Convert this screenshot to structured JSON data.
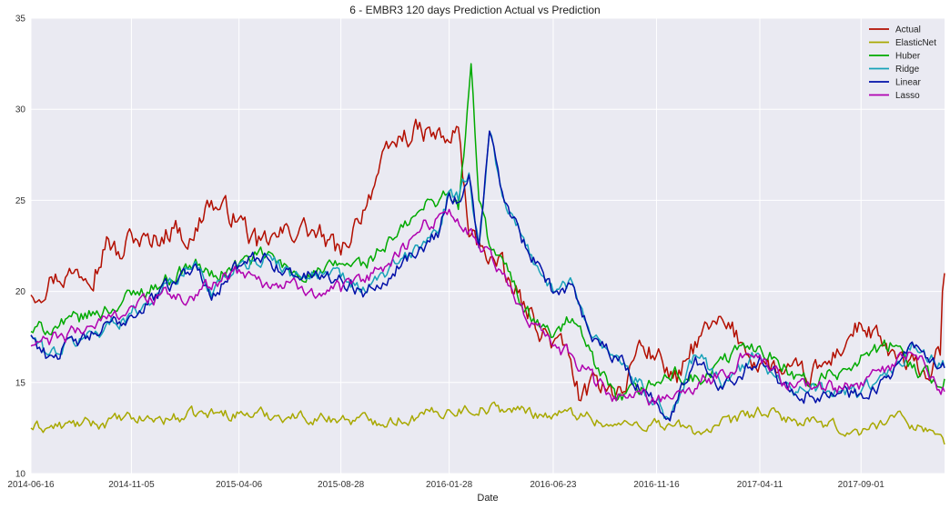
{
  "chart_data": {
    "type": "line",
    "title": "6 - EMBR3 120 days Prediction Actual vs Prediction",
    "xlabel": "Date",
    "ylabel": "",
    "ylim": [
      10,
      35
    ],
    "yticks": [
      "10",
      "15",
      "20",
      "25",
      "30",
      "35"
    ],
    "xlim": [
      "2014-06-16",
      "2017-12-28"
    ],
    "xticks": [
      "2014-06-16",
      "2014-11-05",
      "2015-04-06",
      "2015-08-28",
      "2016-01-28",
      "2016-06-23",
      "2016-11-16",
      "2017-04-11",
      "2017-09-01"
    ],
    "grid": true,
    "legend_position": "top-right",
    "plot_background": "#eaeaf2",
    "series": [
      {
        "name": "Actual",
        "color": "#b30f00",
        "points": [
          [
            "2014-06-16",
            19.8
          ],
          [
            "2014-07-15",
            20.8
          ],
          [
            "2014-08-15",
            21.0
          ],
          [
            "2014-09-15",
            21.2
          ],
          [
            "2014-10-01",
            23.0
          ],
          [
            "2014-10-20",
            21.8
          ],
          [
            "2014-11-05",
            23.2
          ],
          [
            "2014-12-01",
            22.6
          ],
          [
            "2015-01-01",
            23.5
          ],
          [
            "2015-02-01",
            22.8
          ],
          [
            "2015-02-20",
            25.0
          ],
          [
            "2015-03-10",
            24.5
          ],
          [
            "2015-04-06",
            24.0
          ],
          [
            "2015-05-01",
            22.5
          ],
          [
            "2015-06-01",
            23.0
          ],
          [
            "2015-07-01",
            23.5
          ],
          [
            "2015-08-01",
            23.0
          ],
          [
            "2015-08-28",
            22.0
          ],
          [
            "2015-09-20",
            24.0
          ],
          [
            "2015-10-20",
            26.5
          ],
          [
            "2015-11-20",
            28.5
          ],
          [
            "2015-12-20",
            28.8
          ],
          [
            "2016-01-28",
            28.2
          ],
          [
            "2016-02-10",
            29.0
          ],
          [
            "2016-02-25",
            23.0
          ],
          [
            "2016-03-15",
            22.5
          ],
          [
            "2016-04-15",
            21.0
          ],
          [
            "2016-05-15",
            19.0
          ],
          [
            "2016-06-23",
            17.2
          ],
          [
            "2016-07-15",
            16.5
          ],
          [
            "2016-08-01",
            14.0
          ],
          [
            "2016-09-01",
            15.0
          ],
          [
            "2016-10-01",
            14.5
          ],
          [
            "2016-10-20",
            17.0
          ],
          [
            "2016-11-16",
            16.5
          ],
          [
            "2016-12-15",
            15.0
          ],
          [
            "2017-01-15",
            17.5
          ],
          [
            "2017-02-20",
            18.2
          ],
          [
            "2017-03-20",
            17.0
          ],
          [
            "2017-04-11",
            16.0
          ],
          [
            "2017-05-15",
            15.5
          ],
          [
            "2017-06-15",
            15.2
          ],
          [
            "2017-07-15",
            16.0
          ],
          [
            "2017-08-15",
            17.5
          ],
          [
            "2017-09-01",
            18.2
          ],
          [
            "2017-10-01",
            17.0
          ],
          [
            "2017-11-01",
            16.0
          ],
          [
            "2017-12-10",
            15.5
          ],
          [
            "2017-12-22",
            16.5
          ],
          [
            "2017-12-25",
            20.0
          ],
          [
            "2017-12-28",
            21.0
          ]
        ]
      },
      {
        "name": "ElasticNet",
        "color": "#a8a800",
        "points": [
          [
            "2014-06-16",
            12.5
          ],
          [
            "2014-08-01",
            12.6
          ],
          [
            "2014-10-01",
            12.8
          ],
          [
            "2014-11-05",
            13.0
          ],
          [
            "2015-01-01",
            13.0
          ],
          [
            "2015-02-15",
            13.3
          ],
          [
            "2015-04-06",
            13.3
          ],
          [
            "2015-06-01",
            13.2
          ],
          [
            "2015-08-28",
            13.0
          ],
          [
            "2015-10-15",
            12.9
          ],
          [
            "2015-12-15",
            13.1
          ],
          [
            "2016-01-28",
            13.5
          ],
          [
            "2016-03-15",
            13.6
          ],
          [
            "2016-05-01",
            13.5
          ],
          [
            "2016-06-23",
            13.2
          ],
          [
            "2016-08-01",
            13.3
          ],
          [
            "2016-09-15",
            12.6
          ],
          [
            "2016-11-16",
            12.8
          ],
          [
            "2017-01-15",
            12.3
          ],
          [
            "2017-03-01",
            12.8
          ],
          [
            "2017-04-11",
            13.4
          ],
          [
            "2017-06-01",
            12.9
          ],
          [
            "2017-07-15",
            12.6
          ],
          [
            "2017-09-01",
            12.2
          ],
          [
            "2017-10-15",
            13.2
          ],
          [
            "2017-12-01",
            12.5
          ],
          [
            "2017-12-28",
            11.6
          ]
        ]
      },
      {
        "name": "Huber",
        "color": "#00aa00",
        "points": [
          [
            "2014-06-16",
            17.8
          ],
          [
            "2014-08-01",
            18.2
          ],
          [
            "2014-10-01",
            19.0
          ],
          [
            "2014-11-05",
            19.8
          ],
          [
            "2014-12-20",
            20.5
          ],
          [
            "2015-02-01",
            21.5
          ],
          [
            "2015-03-01",
            20.8
          ],
          [
            "2015-04-06",
            21.5
          ],
          [
            "2015-05-15",
            22.0
          ],
          [
            "2015-06-20",
            21.0
          ],
          [
            "2015-08-01",
            21.0
          ],
          [
            "2015-08-28",
            21.5
          ],
          [
            "2015-10-01",
            21.5
          ],
          [
            "2015-11-15",
            23.0
          ],
          [
            "2015-12-20",
            24.5
          ],
          [
            "2016-01-28",
            25.5
          ],
          [
            "2016-02-10",
            24.5
          ],
          [
            "2016-02-20",
            28.5
          ],
          [
            "2016-02-28",
            32.5
          ],
          [
            "2016-03-10",
            25.0
          ],
          [
            "2016-03-25",
            22.5
          ],
          [
            "2016-04-15",
            21.5
          ],
          [
            "2016-05-15",
            19.0
          ],
          [
            "2016-06-23",
            17.5
          ],
          [
            "2016-07-20",
            18.5
          ],
          [
            "2016-08-20",
            16.0
          ],
          [
            "2016-09-20",
            14.0
          ],
          [
            "2016-10-20",
            14.5
          ],
          [
            "2016-11-16",
            15.0
          ],
          [
            "2016-12-15",
            15.5
          ],
          [
            "2017-01-20",
            15.0
          ],
          [
            "2017-03-01",
            16.5
          ],
          [
            "2017-04-11",
            17.0
          ],
          [
            "2017-05-15",
            16.0
          ],
          [
            "2017-06-15",
            15.0
          ],
          [
            "2017-08-01",
            15.5
          ],
          [
            "2017-09-01",
            16.5
          ],
          [
            "2017-10-15",
            17.0
          ],
          [
            "2017-11-15",
            16.0
          ],
          [
            "2017-12-15",
            15.0
          ],
          [
            "2017-12-28",
            15.2
          ]
        ]
      },
      {
        "name": "Ridge",
        "color": "#17a2b8",
        "points": [
          [
            "2014-06-16",
            17.6
          ],
          [
            "2014-07-10",
            16.5
          ],
          [
            "2014-09-01",
            17.5
          ],
          [
            "2014-11-05",
            18.8
          ],
          [
            "2015-01-01",
            20.5
          ],
          [
            "2015-02-01",
            21.5
          ],
          [
            "2015-03-01",
            20.0
          ],
          [
            "2015-04-06",
            21.5
          ],
          [
            "2015-05-15",
            22.0
          ],
          [
            "2015-06-20",
            21.0
          ],
          [
            "2015-08-01",
            21.0
          ],
          [
            "2015-08-28",
            20.8
          ],
          [
            "2015-10-01",
            20.0
          ],
          [
            "2015-11-15",
            21.5
          ],
          [
            "2015-12-20",
            22.5
          ],
          [
            "2016-01-15",
            23.5
          ],
          [
            "2016-01-28",
            25.5
          ],
          [
            "2016-02-10",
            25.0
          ],
          [
            "2016-02-25",
            26.5
          ],
          [
            "2016-03-10",
            22.5
          ],
          [
            "2016-03-25",
            28.8
          ],
          [
            "2016-04-15",
            25.0
          ],
          [
            "2016-05-15",
            22.5
          ],
          [
            "2016-06-23",
            20.0
          ],
          [
            "2016-07-20",
            20.5
          ],
          [
            "2016-08-20",
            17.5
          ],
          [
            "2016-09-20",
            16.5
          ],
          [
            "2016-10-20",
            15.0
          ],
          [
            "2016-11-16",
            14.0
          ],
          [
            "2016-12-05",
            13.0
          ],
          [
            "2017-01-10",
            16.5
          ],
          [
            "2017-02-20",
            15.0
          ],
          [
            "2017-04-11",
            16.5
          ],
          [
            "2017-05-15",
            15.0
          ],
          [
            "2017-06-15",
            14.5
          ],
          [
            "2017-08-01",
            14.5
          ],
          [
            "2017-09-01",
            14.5
          ],
          [
            "2017-10-15",
            15.5
          ],
          [
            "2017-11-15",
            17.0
          ],
          [
            "2017-12-15",
            16.0
          ],
          [
            "2017-12-28",
            15.8
          ]
        ]
      },
      {
        "name": "Linear",
        "color": "#0010a8",
        "points": [
          [
            "2014-06-16",
            17.6
          ],
          [
            "2014-07-10",
            16.4
          ],
          [
            "2014-09-01",
            17.4
          ],
          [
            "2014-11-05",
            18.7
          ],
          [
            "2015-01-01",
            20.4
          ],
          [
            "2015-02-01",
            21.4
          ],
          [
            "2015-03-01",
            19.9
          ],
          [
            "2015-04-06",
            21.4
          ],
          [
            "2015-05-15",
            21.9
          ],
          [
            "2015-06-20",
            20.9
          ],
          [
            "2015-08-01",
            20.9
          ],
          [
            "2015-08-28",
            20.7
          ],
          [
            "2015-10-01",
            19.9
          ],
          [
            "2015-11-15",
            21.4
          ],
          [
            "2015-12-20",
            22.4
          ],
          [
            "2016-01-15",
            23.4
          ],
          [
            "2016-01-28",
            25.4
          ],
          [
            "2016-02-10",
            24.9
          ],
          [
            "2016-02-25",
            26.4
          ],
          [
            "2016-03-10",
            22.4
          ],
          [
            "2016-03-25",
            28.8
          ],
          [
            "2016-04-15",
            24.9
          ],
          [
            "2016-05-15",
            22.4
          ],
          [
            "2016-06-23",
            19.9
          ],
          [
            "2016-07-20",
            20.4
          ],
          [
            "2016-08-20",
            17.4
          ],
          [
            "2016-09-20",
            16.4
          ],
          [
            "2016-10-20",
            14.9
          ],
          [
            "2016-11-16",
            13.9
          ],
          [
            "2016-12-05",
            12.9
          ],
          [
            "2017-01-10",
            16.4
          ],
          [
            "2017-02-20",
            14.9
          ],
          [
            "2017-04-11",
            16.4
          ],
          [
            "2017-05-15",
            14.9
          ],
          [
            "2017-06-15",
            14.4
          ],
          [
            "2017-08-01",
            14.4
          ],
          [
            "2017-09-01",
            14.4
          ],
          [
            "2017-10-15",
            15.4
          ],
          [
            "2017-11-15",
            16.9
          ],
          [
            "2017-12-15",
            15.9
          ],
          [
            "2017-12-28",
            15.8
          ]
        ]
      },
      {
        "name": "Lasso",
        "color": "#b000b0",
        "points": [
          [
            "2014-06-16",
            17.0
          ],
          [
            "2014-08-01",
            17.5
          ],
          [
            "2014-10-01",
            18.5
          ],
          [
            "2014-11-05",
            19.2
          ],
          [
            "2014-12-15",
            19.8
          ],
          [
            "2015-02-01",
            19.5
          ],
          [
            "2015-03-01",
            20.5
          ],
          [
            "2015-04-06",
            21.2
          ],
          [
            "2015-05-15",
            20.5
          ],
          [
            "2015-07-01",
            20.2
          ],
          [
            "2015-08-28",
            20.0
          ],
          [
            "2015-10-01",
            20.5
          ],
          [
            "2015-11-15",
            22.0
          ],
          [
            "2015-12-20",
            23.5
          ],
          [
            "2016-01-28",
            24.5
          ],
          [
            "2016-02-20",
            23.5
          ],
          [
            "2016-03-10",
            22.5
          ],
          [
            "2016-04-15",
            21.0
          ],
          [
            "2016-05-15",
            18.5
          ],
          [
            "2016-06-23",
            17.0
          ],
          [
            "2016-07-20",
            16.5
          ],
          [
            "2016-08-20",
            15.0
          ],
          [
            "2016-09-20",
            14.0
          ],
          [
            "2016-10-20",
            14.5
          ],
          [
            "2016-11-16",
            14.0
          ],
          [
            "2016-12-15",
            14.5
          ],
          [
            "2017-01-15",
            15.0
          ],
          [
            "2017-02-20",
            15.5
          ],
          [
            "2017-03-20",
            16.5
          ],
          [
            "2017-04-11",
            16.5
          ],
          [
            "2017-05-15",
            15.0
          ],
          [
            "2017-06-15",
            14.8
          ],
          [
            "2017-08-01",
            14.8
          ],
          [
            "2017-09-01",
            15.0
          ],
          [
            "2017-10-15",
            16.0
          ],
          [
            "2017-11-15",
            16.5
          ],
          [
            "2017-12-15",
            15.0
          ],
          [
            "2017-12-28",
            14.5
          ]
        ]
      }
    ]
  }
}
